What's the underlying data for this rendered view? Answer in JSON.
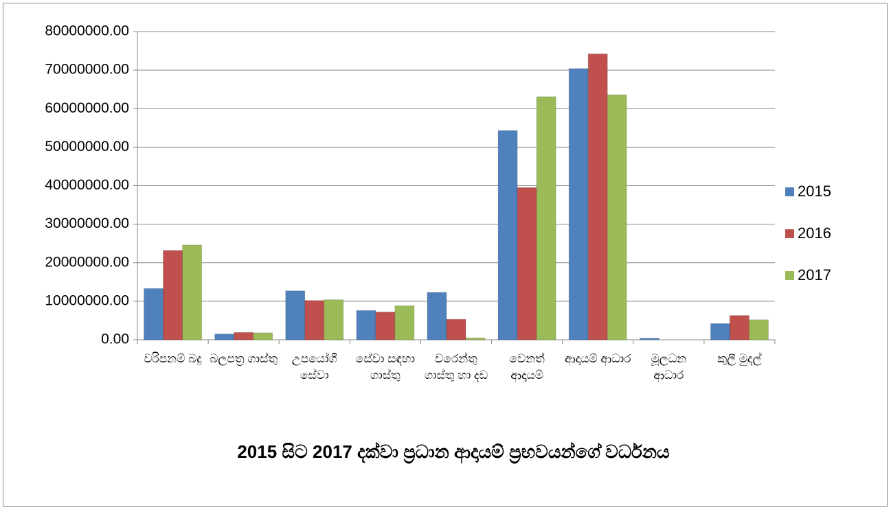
{
  "chart_data": {
    "type": "bar",
    "title": "2015 සිට 2017 දක්වා ප්‍රධාන ආදායම් ප්‍රභවයන්ගේ වර්ධනය",
    "categories": [
      "වරිපනම් බදු",
      "බලපත්‍ර ගාස්තු",
      "උපයෝගී සේවා",
      "සේවා සඳහා ගාස්තු",
      "වරෙන්තු ගාස්තු හා දඩ",
      "වෙනත් ආදායම්",
      "ආදායම් ආධාර",
      "මූලධන ආධාර",
      "කුලී මුදල්"
    ],
    "series": [
      {
        "name": "2015",
        "color": "#4f81bd",
        "values": [
          13300000,
          1500000,
          12700000,
          7600000,
          12300000,
          54300000,
          70400000,
          400000,
          4200000
        ]
      },
      {
        "name": "2016",
        "color": "#c0504d",
        "values": [
          23200000,
          1900000,
          10200000,
          7200000,
          5300000,
          39500000,
          74200000,
          0,
          6300000
        ]
      },
      {
        "name": "2017",
        "color": "#9bbb59",
        "values": [
          24600000,
          1800000,
          10400000,
          8800000,
          500000,
          63100000,
          63600000,
          0,
          5200000
        ]
      }
    ],
    "ylim": [
      0,
      80000000
    ],
    "yticks": [
      {
        "value": 0,
        "label": "0.00"
      },
      {
        "value": 10000000,
        "label": "10000000.00"
      },
      {
        "value": 20000000,
        "label": "20000000.00"
      },
      {
        "value": 30000000,
        "label": "30000000.00"
      },
      {
        "value": 40000000,
        "label": "40000000.00"
      },
      {
        "value": 50000000,
        "label": "50000000.00"
      },
      {
        "value": 60000000,
        "label": "60000000.00"
      },
      {
        "value": 70000000,
        "label": "70000000.00"
      },
      {
        "value": 80000000,
        "label": "80000000.00"
      }
    ],
    "grid": true,
    "legend": "right"
  }
}
